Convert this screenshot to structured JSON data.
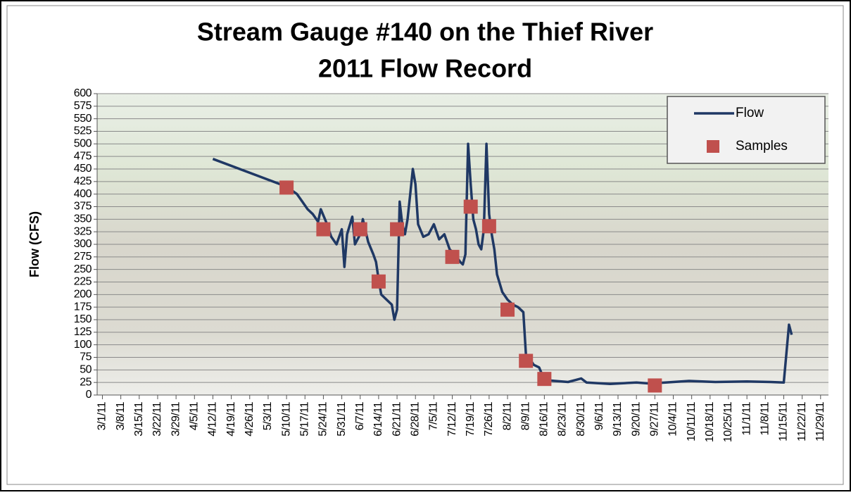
{
  "chart_data": {
    "type": "line",
    "title": "Stream Gauge #140 on the Thief River",
    "subtitle": "2011 Flow Record",
    "y_label": "Flow (CFS)",
    "xlim": [
      "2/27/11",
      "12/2/11"
    ],
    "xticks": [
      "3/1/11",
      "3/8/11",
      "3/15/11",
      "3/22/11",
      "3/29/11",
      "4/5/11",
      "4/12/11",
      "4/19/11",
      "4/26/11",
      "5/3/11",
      "5/10/11",
      "5/17/11",
      "5/24/11",
      "5/31/11",
      "6/7/11",
      "6/14/11",
      "6/21/11",
      "6/28/11",
      "7/5/11",
      "7/12/11",
      "7/19/11",
      "7/26/11",
      "8/2/11",
      "8/9/11",
      "8/16/11",
      "8/23/11",
      "8/30/11",
      "9/6/11",
      "9/13/11",
      "9/20/11",
      "9/27/11",
      "10/4/11",
      "10/11/11",
      "10/18/11",
      "10/25/11",
      "11/1/11",
      "11/8/11",
      "11/15/11",
      "11/22/11",
      "11/29/11"
    ],
    "ylim": [
      0,
      600
    ],
    "yticks": [
      0,
      25,
      50,
      75,
      100,
      125,
      150,
      175,
      200,
      225,
      250,
      275,
      300,
      325,
      350,
      375,
      400,
      425,
      450,
      475,
      500,
      525,
      550,
      575,
      600
    ],
    "grid": true,
    "legend": "upper right",
    "series": [
      {
        "name": "Flow",
        "type": "line",
        "color": "#1f3864",
        "x": [
          "4/12/11",
          "5/10/11",
          "5/14/11",
          "5/16/11",
          "5/18/11",
          "5/20/11",
          "5/22/11",
          "5/23/11",
          "5/25/11",
          "5/27/11",
          "5/29/11",
          "5/31/11",
          "6/1/11",
          "6/2/11",
          "6/4/11",
          "6/5/11",
          "6/7/11",
          "6/8/11",
          "6/10/11",
          "6/12/11",
          "6/13/11",
          "6/14/11",
          "6/15/11",
          "6/17/11",
          "6/19/11",
          "6/20/11",
          "6/21/11",
          "6/22/11",
          "6/23/11",
          "6/24/11",
          "6/25/11",
          "6/26/11",
          "6/27/11",
          "6/28/11",
          "6/29/11",
          "7/1/11",
          "7/3/11",
          "7/5/11",
          "7/7/11",
          "7/9/11",
          "7/11/11",
          "7/13/11",
          "7/15/11",
          "7/16/11",
          "7/17/11",
          "7/18/11",
          "7/19/11",
          "7/20/11",
          "7/21/11",
          "7/22/11",
          "7/23/11",
          "7/24/11",
          "7/25/11",
          "7/26/11",
          "7/27/11",
          "7/28/11",
          "7/29/11",
          "7/31/11",
          "8/2/11",
          "8/4/11",
          "8/6/11",
          "8/8/11",
          "8/9/11",
          "8/10/11",
          "8/12/11",
          "8/14/11",
          "8/16/11",
          "8/20/11",
          "8/25/11",
          "8/28/11",
          "8/30/11",
          "9/1/11",
          "9/10/11",
          "9/20/11",
          "9/25/11",
          "10/1/11",
          "10/10/11",
          "10/20/11",
          "11/1/11",
          "11/10/11",
          "11/15/11",
          "11/17/11",
          "11/18/11"
        ],
        "values": [
          470,
          415,
          400,
          385,
          370,
          360,
          345,
          370,
          345,
          315,
          300,
          330,
          255,
          320,
          355,
          300,
          320,
          350,
          305,
          280,
          265,
          230,
          200,
          190,
          180,
          150,
          170,
          385,
          340,
          320,
          350,
          400,
          450,
          420,
          340,
          315,
          320,
          340,
          310,
          320,
          290,
          280,
          265,
          260,
          280,
          500,
          420,
          350,
          330,
          300,
          290,
          330,
          500,
          360,
          320,
          290,
          240,
          205,
          190,
          180,
          175,
          165,
          80,
          75,
          60,
          55,
          30,
          28,
          26,
          30,
          33,
          25,
          22,
          25,
          23,
          25,
          28,
          26,
          27,
          26,
          25,
          140,
          120
        ]
      },
      {
        "name": "Samples",
        "type": "scatter",
        "color": "#c0504d",
        "x": [
          "5/10/11",
          "5/24/11",
          "6/7/11",
          "6/14/11",
          "6/21/11",
          "7/12/11",
          "7/19/11",
          "7/26/11",
          "8/2/11",
          "8/9/11",
          "8/16/11",
          "9/27/11"
        ],
        "values": [
          413,
          330,
          330,
          226,
          330,
          275,
          375,
          336,
          170,
          68,
          32,
          19
        ]
      }
    ]
  }
}
